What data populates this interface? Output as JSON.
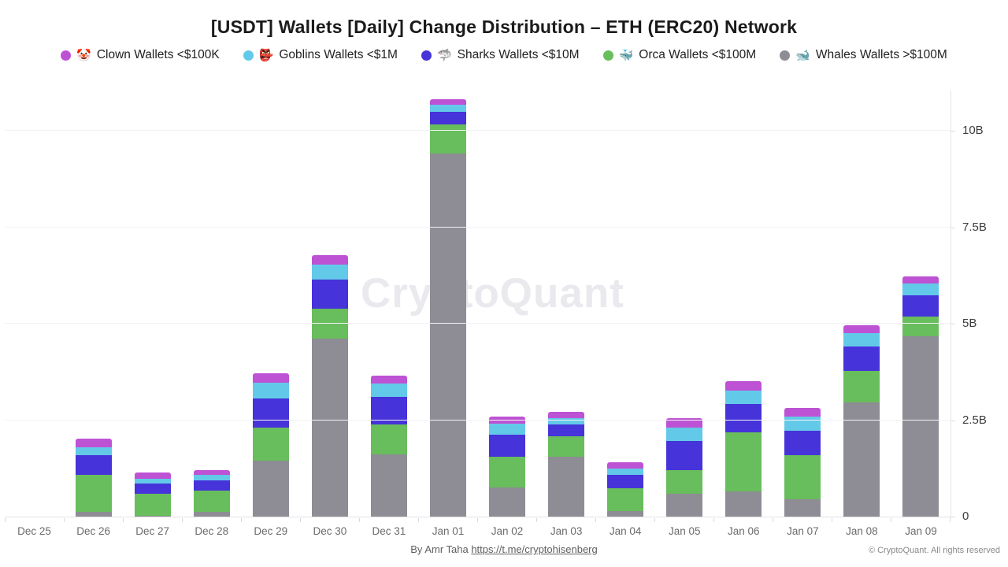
{
  "title": "[USDT] Wallets [Daily] Change Distribution – ETH (ERC20) Network",
  "legend": [
    {
      "label": "Clown Wallets <$100K",
      "emoji": "🤡",
      "icon_name": "clown-icon",
      "color": "#bd52d4"
    },
    {
      "label": "Goblins Wallets <$1M",
      "emoji": "👺",
      "icon_name": "goblin-icon",
      "color": "#63c9e8"
    },
    {
      "label": "Sharks Wallets <$10M",
      "emoji": "🦈",
      "icon_name": "shark-icon",
      "color": "#4633d9"
    },
    {
      "label": "Orca Wallets <$100M",
      "emoji": "🐳",
      "icon_name": "orca-icon",
      "color": "#68bd5c"
    },
    {
      "label": "Whales Wallets >$100M",
      "emoji": "🐋",
      "icon_name": "whale-icon",
      "color": "#8e8c94"
    }
  ],
  "chart_data": {
    "type": "bar",
    "stacked": true,
    "title": "[USDT] Wallets [Daily] Change Distribution – ETH (ERC20) Network",
    "unit": "billions USDT",
    "categories": [
      "Dec 25",
      "Dec 26",
      "Dec 27",
      "Dec 28",
      "Dec 29",
      "Dec 30",
      "Dec 31",
      "Jan 01",
      "Jan 02",
      "Jan 03",
      "Jan 04",
      "Jan 05",
      "Jan 06",
      "Jan 07",
      "Jan 08",
      "Jan 09"
    ],
    "stack_order_top_to_bottom": [
      "Clown Wallets <$100K",
      "Goblins Wallets <$1M",
      "Sharks Wallets <$10M",
      "Orca Wallets <$100M",
      "Whales Wallets >$100M"
    ],
    "series": [
      {
        "name": "Clown Wallets <$100K",
        "color": "#bd52d4",
        "values": [
          0,
          0.22,
          0.16,
          0.12,
          0.25,
          0.23,
          0.21,
          0.14,
          0.19,
          0.16,
          0.16,
          0.26,
          0.25,
          0.22,
          0.2,
          0.19
        ]
      },
      {
        "name": "Goblins Wallets <$1M",
        "color": "#63c9e8",
        "values": [
          0,
          0.2,
          0.12,
          0.16,
          0.41,
          0.39,
          0.34,
          0.18,
          0.29,
          0.18,
          0.16,
          0.34,
          0.35,
          0.37,
          0.34,
          0.31
        ]
      },
      {
        "name": "Sharks Wallets <$10M",
        "color": "#4633d9",
        "values": [
          0,
          0.51,
          0.27,
          0.26,
          0.76,
          0.77,
          0.72,
          0.33,
          0.56,
          0.29,
          0.35,
          0.76,
          0.72,
          0.63,
          0.64,
          0.55
        ]
      },
      {
        "name": "Orca Wallets <$100M",
        "color": "#68bd5c",
        "values": [
          0,
          0.95,
          0.57,
          0.55,
          0.85,
          0.76,
          0.77,
          0.77,
          0.8,
          0.53,
          0.58,
          0.61,
          1.54,
          1.16,
          0.82,
          0.5
        ]
      },
      {
        "name": "Whales Wallets >$100M",
        "color": "#8e8c94",
        "values": [
          0,
          0.13,
          0.02,
          0.12,
          1.45,
          4.62,
          1.62,
          9.4,
          0.76,
          1.56,
          0.15,
          0.59,
          0.65,
          0.44,
          2.95,
          4.68
        ]
      }
    ],
    "yticks": [
      {
        "value": 0,
        "label": "0"
      },
      {
        "value": 2.5,
        "label": "2.5B"
      },
      {
        "value": 5,
        "label": "5B"
      },
      {
        "value": 7.5,
        "label": "7.5B"
      },
      {
        "value": 10,
        "label": "10B"
      }
    ],
    "ylim": [
      0,
      11.35
    ],
    "grid": true,
    "legend_position": "top",
    "yaxis_position": "right"
  },
  "watermark": "CryptoQuant",
  "footer": {
    "byline_prefix": "By Amr Taha ",
    "link_text": "https://t.me/cryptohisenberg",
    "copyright": "© CryptoQuant. All rights reserved"
  }
}
